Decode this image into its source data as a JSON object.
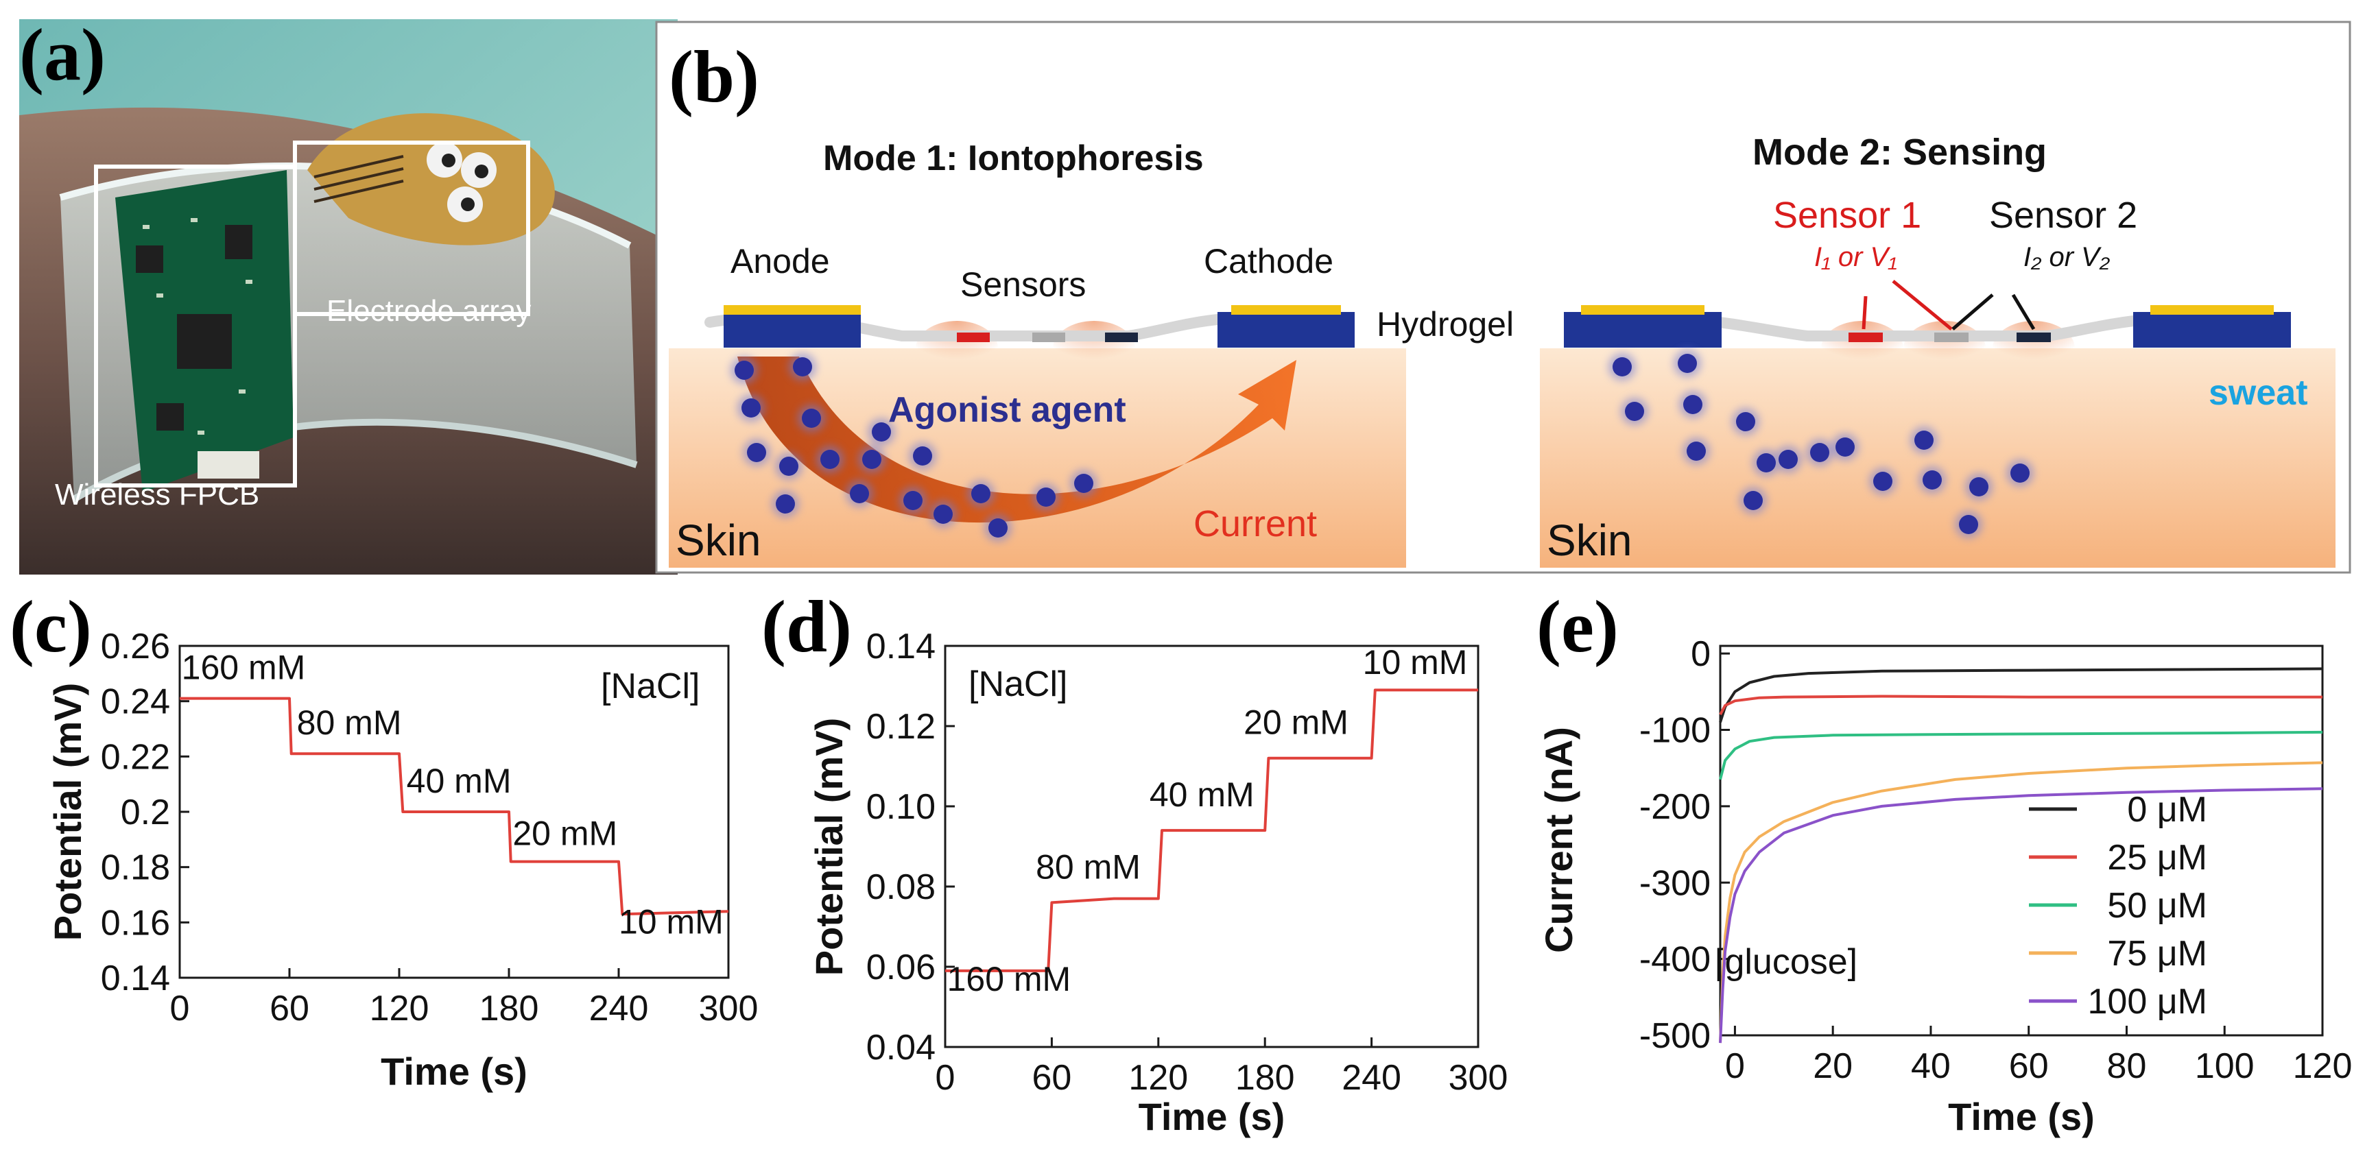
{
  "panels": {
    "a": {
      "label": "(a)",
      "box_labels": [
        "Electrode array",
        "Wireless FPCB"
      ]
    },
    "b": {
      "label": "(b)",
      "mode1": {
        "title": "Mode 1: Iontophoresis",
        "anode": "Anode",
        "sensors": "Sensors",
        "cathode": "Cathode",
        "hydrogel": "Hydrogel",
        "agonist": "Agonist agent",
        "skin": "Skin",
        "current": "Current"
      },
      "mode2": {
        "title": "Mode 2: Sensing",
        "sensor1": "Sensor 1",
        "sensor1_sub": "I₁ or V₁",
        "sensor2": "Sensor 2",
        "sensor2_sub": "I₂ or V₂",
        "sweat": "sweat",
        "skin": "Skin"
      }
    }
  },
  "colors": {
    "trace_red": "#e0403a",
    "electrode_blue": "#1f3595",
    "electrode_gold": "#f2c314",
    "current_arrow": "#e4570f",
    "agonist_text": "#2b2f8f",
    "current_text": "#e2301f",
    "sweat_text": "#1aa3e0",
    "sensor1_red": "#d91c1c",
    "skin_top": "#fde7cf",
    "skin_bottom": "#f6b27d",
    "glucose_0": "#222222",
    "glucose_25": "#e0443e",
    "glucose_50": "#2fbf83",
    "glucose_75": "#f4b15a",
    "glucose_100": "#8a52c9"
  },
  "chart_data": [
    {
      "id": "c",
      "panel_label": "(c)",
      "type": "line",
      "xlabel": "Time (s)",
      "ylabel": "Potential (mV)",
      "xlim": [
        0,
        300
      ],
      "ylim": [
        0.14,
        0.26
      ],
      "xticks": [
        0,
        60,
        120,
        180,
        240,
        300
      ],
      "yticks": [
        0.14,
        0.16,
        0.18,
        0.2,
        0.22,
        0.24,
        0.26
      ],
      "ytick_labels": [
        "0.14",
        "0.16",
        "0.18",
        "0.2",
        "0.22",
        "0.24",
        "0.26"
      ],
      "legend_text": "[NaCl]",
      "series": [
        {
          "name": "NaCl",
          "x": [
            0,
            60,
            61,
            120,
            122,
            180,
            181,
            240,
            242,
            300
          ],
          "y": [
            0.241,
            0.241,
            0.221,
            0.221,
            0.2,
            0.2,
            0.182,
            0.182,
            0.163,
            0.164
          ]
        }
      ],
      "annotations": [
        {
          "text": "160 mM",
          "x": 1,
          "y": 0.248
        },
        {
          "text": "80 mM",
          "x": 64,
          "y": 0.228
        },
        {
          "text": "40 mM",
          "x": 124,
          "y": 0.207
        },
        {
          "text": "20 mM",
          "x": 182,
          "y": 0.188
        },
        {
          "text": "10 mM",
          "x": 240,
          "y": 0.156
        }
      ]
    },
    {
      "id": "d",
      "panel_label": "(d)",
      "type": "line",
      "xlabel": "Time (s)",
      "ylabel": "Potential (mV)",
      "xlim": [
        0,
        300
      ],
      "ylim": [
        0.04,
        0.14
      ],
      "xticks": [
        0,
        60,
        120,
        180,
        240,
        300
      ],
      "yticks": [
        0.04,
        0.06,
        0.08,
        0.1,
        0.12,
        0.14
      ],
      "ytick_labels": [
        "0.04",
        "0.06",
        "0.08",
        "0.10",
        "0.12",
        "0.14"
      ],
      "legend_text": "[NaCl]",
      "series": [
        {
          "name": "NaCl",
          "x": [
            0,
            58,
            60,
            95,
            120,
            122,
            180,
            182,
            240,
            242,
            300
          ],
          "y": [
            0.059,
            0.059,
            0.076,
            0.077,
            0.077,
            0.094,
            0.094,
            0.112,
            0.112,
            0.129,
            0.129
          ]
        }
      ],
      "annotations": [
        {
          "text": "160 mM",
          "x": 1,
          "y": 0.054
        },
        {
          "text": "80 mM",
          "x": 51,
          "y": 0.082
        },
        {
          "text": "40 mM",
          "x": 115,
          "y": 0.1
        },
        {
          "text": "20 mM",
          "x": 168,
          "y": 0.118
        },
        {
          "text": "10 mM",
          "x": 235,
          "y": 0.133
        }
      ]
    },
    {
      "id": "e",
      "panel_label": "(e)",
      "type": "line",
      "xlabel": "Time (s)",
      "ylabel": "Current (nA)",
      "xlim": [
        -3,
        120
      ],
      "ylim": [
        -500,
        10
      ],
      "xticks": [
        0,
        20,
        40,
        60,
        80,
        100,
        120
      ],
      "yticks": [
        0,
        -100,
        -200,
        -300,
        -400,
        -500
      ],
      "ytick_labels": [
        "0",
        "-100",
        "-200",
        "-300",
        "-400",
        "-500"
      ],
      "legend_text": "[glucose]",
      "legend_position": "bottom-right",
      "series": [
        {
          "name": "0 μM",
          "color_key": "glucose_0",
          "x": [
            -3,
            -2,
            0,
            3,
            8,
            15,
            30,
            60,
            90,
            120
          ],
          "y": [
            -90,
            -70,
            -50,
            -38,
            -30,
            -26,
            -23,
            -22,
            -21,
            -20
          ]
        },
        {
          "name": "25 μM",
          "color_key": "glucose_25",
          "x": [
            -3,
            -2,
            0,
            5,
            10,
            30,
            60,
            90,
            120
          ],
          "y": [
            -80,
            -68,
            -62,
            -58,
            -57,
            -56,
            -57,
            -57,
            -57
          ]
        },
        {
          "name": "50 μM",
          "color_key": "glucose_50",
          "x": [
            -3,
            -2,
            0,
            3,
            8,
            20,
            40,
            70,
            100,
            120
          ],
          "y": [
            -165,
            -140,
            -125,
            -115,
            -110,
            -107,
            -106,
            -105,
            -104,
            -103
          ]
        },
        {
          "name": "75 μM",
          "color_key": "glucose_75",
          "x": [
            -3,
            -2.5,
            -2,
            -1,
            0,
            2,
            5,
            10,
            20,
            30,
            45,
            60,
            80,
            100,
            120
          ],
          "y": [
            -510,
            -420,
            -370,
            -320,
            -290,
            -260,
            -240,
            -220,
            -195,
            -180,
            -165,
            -157,
            -150,
            -146,
            -143
          ]
        },
        {
          "name": "100 μM",
          "color_key": "glucose_100",
          "x": [
            -3,
            -2.5,
            -2,
            -1,
            0,
            2,
            5,
            10,
            20,
            30,
            45,
            60,
            80,
            100,
            120
          ],
          "y": [
            -510,
            -440,
            -390,
            -345,
            -315,
            -285,
            -260,
            -235,
            -212,
            -200,
            -191,
            -186,
            -182,
            -179,
            -177
          ]
        }
      ]
    }
  ]
}
